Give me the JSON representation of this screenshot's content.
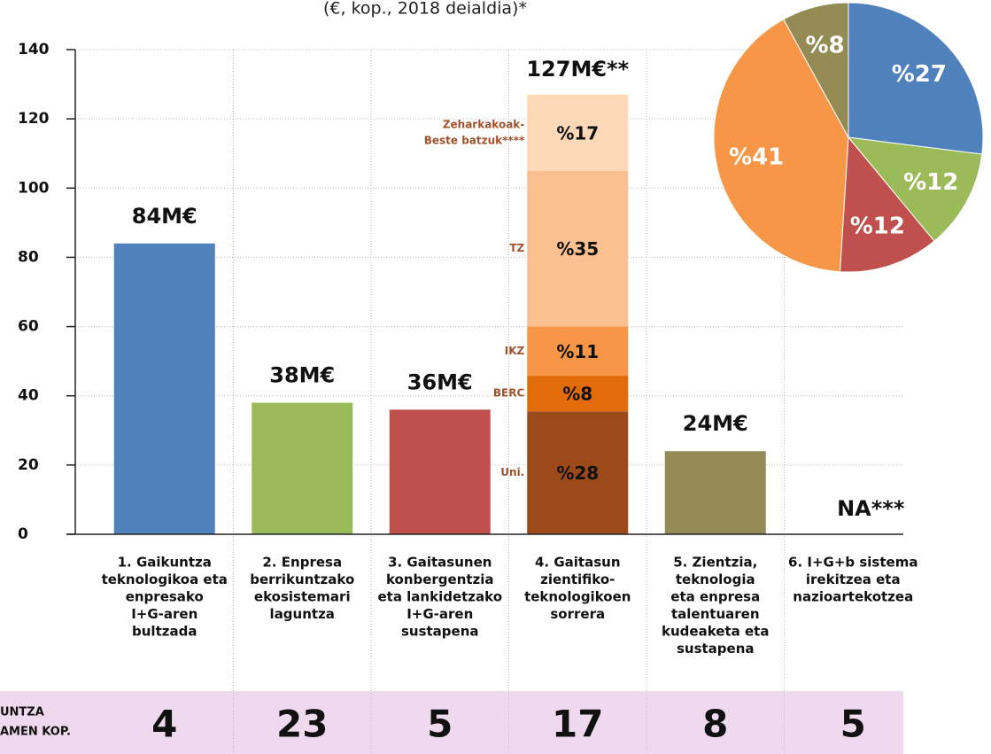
{
  "chart_data": [
    {
      "type": "bar",
      "subtitle": "(€, kop., 2018 deialdia)*",
      "categories": [
        [
          "1. Gaikuntza",
          "teknologikoa eta",
          "enpresako",
          "I+G-aren",
          "bultzada"
        ],
        [
          "2. Enpresa",
          "berrikuntzako",
          "ekosistemari",
          "laguntza"
        ],
        [
          "3. Gaitasunen",
          "konbergentzia",
          "eta lankidetzako",
          "I+G-aren",
          "sustapena"
        ],
        [
          "4. Gaitasun",
          "zientifiko-",
          "teknologikoen",
          "sorrera"
        ],
        [
          "5. Zientzia,",
          "teknologia",
          "eta enpresa",
          "talentuaren",
          "kudeaketa eta",
          "sustapena"
        ],
        [
          "6. I+G+b sistema",
          "irekitzea eta",
          "nazioartekotzea"
        ]
      ],
      "values": [
        84,
        38,
        36,
        null,
        24,
        null
      ],
      "value_labels": [
        "84M€",
        "38M€",
        "36M€",
        null,
        "24M€",
        "NA***"
      ],
      "colors": [
        "#4f81bd",
        "#9bbb59",
        "#c0504d",
        null,
        "#948a54",
        null
      ],
      "stack": {
        "index": 3,
        "total": 127,
        "total_label": "127M€**",
        "segments": [
          {
            "name": [
              "Uni."
            ],
            "value": 35.5,
            "label": "%28",
            "color": "#9c4a1a"
          },
          {
            "name": [
              "BERC"
            ],
            "value": 10.3,
            "label": "%8",
            "color": "#e36c0a"
          },
          {
            "name": [
              "IKZ"
            ],
            "value": 14.2,
            "label": "%11",
            "color": "#f79646"
          },
          {
            "name": [
              "TZ"
            ],
            "value": 45,
            "label": "%35",
            "color": "#fac08f"
          },
          {
            "name": [
              "Zeharkakoak-",
              "Beste batzuk****"
            ],
            "value": 22,
            "label": "%17",
            "color": "#fdd9b8"
          }
        ]
      },
      "ylim": [
        0,
        140
      ],
      "yticks": [
        0,
        20,
        40,
        60,
        80,
        100,
        120,
        140
      ],
      "grid": true
    },
    {
      "type": "pie",
      "values": [
        27,
        12,
        12,
        41,
        8
      ],
      "value_labels": [
        "%27",
        "%12",
        "%12",
        "%41",
        "%8"
      ],
      "colors": [
        "#4f81bd",
        "#9bbb59",
        "#c0504d",
        "#f79646",
        "#948a54"
      ]
    }
  ],
  "table": {
    "header": [
      "UNTZA",
      "AMEN KOP."
    ],
    "values": [
      4,
      23,
      5,
      17,
      8,
      5
    ]
  }
}
